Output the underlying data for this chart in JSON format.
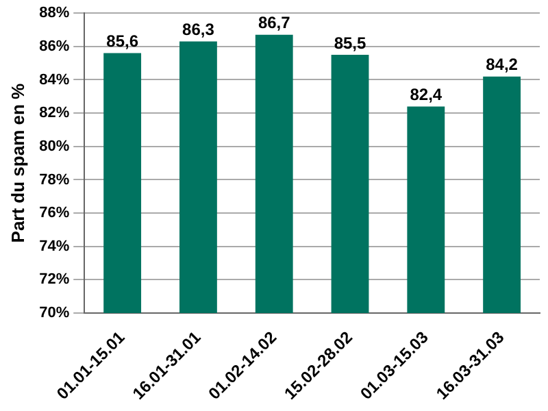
{
  "chart_data": {
    "type": "bar",
    "ylabel": "Part du spam en %",
    "categories": [
      "01.01-15.01",
      "16.01-31.01",
      "01.02-14.02",
      "15.02-28.02",
      "01.03-15.03",
      "16.03-31.03"
    ],
    "values": [
      85.6,
      86.3,
      86.7,
      85.5,
      82.4,
      84.2
    ],
    "value_labels": [
      "85,6",
      "86,3",
      "86,7",
      "85,5",
      "82,4",
      "84,2"
    ],
    "color": "#007360",
    "ylim": [
      70,
      88
    ],
    "yticks": [
      {
        "value": 70,
        "label": "70%"
      },
      {
        "value": 72,
        "label": "72%"
      },
      {
        "value": 74,
        "label": "74%"
      },
      {
        "value": 76,
        "label": "76%"
      },
      {
        "value": 78,
        "label": "78%"
      },
      {
        "value": 80,
        "label": "80%"
      },
      {
        "value": 82,
        "label": "82%"
      },
      {
        "value": 84,
        "label": "84%"
      },
      {
        "value": 86,
        "label": "86%"
      },
      {
        "value": 88,
        "label": "88%"
      }
    ],
    "grid": "y"
  }
}
